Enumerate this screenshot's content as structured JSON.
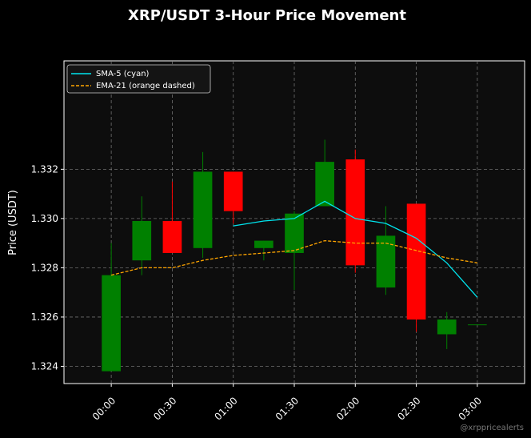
{
  "chart_data": {
    "type": "candlestick",
    "title": "XRP/USDT 3-Hour Price Movement",
    "ylabel": "Price (USDT)",
    "xlabel": "",
    "ylim": [
      1.3233,
      1.3364
    ],
    "y_ticks": [
      "1.324",
      "1.326",
      "1.328",
      "1.330",
      "1.332"
    ],
    "y_tick_values": [
      1.324,
      1.326,
      1.328,
      1.33,
      1.332
    ],
    "x_tick_labels": [
      "00:00",
      "00:30",
      "01:00",
      "01:30",
      "02:00",
      "02:30",
      "03:00"
    ],
    "x_tick_index": [
      0,
      2,
      4,
      6,
      8,
      10,
      12
    ],
    "x_range_index": [
      -1.55,
      13.55
    ],
    "grid": true,
    "legend_position": "top-left",
    "legend": [
      {
        "label": "SMA-5 (cyan)",
        "color": "#00e5ee",
        "style": "solid"
      },
      {
        "label": "EMA-21 (orange dashed)",
        "color": "#ffa500",
        "style": "dashed"
      }
    ],
    "times": [
      "00:00",
      "00:15",
      "00:30",
      "00:45",
      "01:00",
      "01:15",
      "01:30",
      "01:45",
      "02:00",
      "02:15",
      "02:30",
      "02:45",
      "03:00"
    ],
    "candles": [
      {
        "open": 1.3238,
        "high": 1.329,
        "low": 1.3238,
        "close": 1.3277
      },
      {
        "open": 1.3283,
        "high": 1.3309,
        "low": 1.3277,
        "close": 1.3299
      },
      {
        "open": 1.3299,
        "high": 1.3315,
        "low": 1.3286,
        "close": 1.3286
      },
      {
        "open": 1.3288,
        "high": 1.3327,
        "low": 1.3284,
        "close": 1.3319
      },
      {
        "open": 1.3319,
        "high": 1.3319,
        "low": 1.3298,
        "close": 1.3303
      },
      {
        "open": 1.3288,
        "high": 1.3291,
        "low": 1.3283,
        "close": 1.3291
      },
      {
        "open": 1.3286,
        "high": 1.3303,
        "low": 1.3271,
        "close": 1.3302
      },
      {
        "open": 1.3305,
        "high": 1.3332,
        "low": 1.3305,
        "close": 1.3323
      },
      {
        "open": 1.3324,
        "high": 1.3328,
        "low": 1.3278,
        "close": 1.3281
      },
      {
        "open": 1.3272,
        "high": 1.3305,
        "low": 1.3269,
        "close": 1.3293
      },
      {
        "open": 1.3306,
        "high": 1.3306,
        "low": 1.3254,
        "close": 1.3259
      },
      {
        "open": 1.3253,
        "high": 1.3262,
        "low": 1.3247,
        "close": 1.3259
      },
      {
        "open": 1.3257,
        "high": 1.3257,
        "low": 1.3257,
        "close": 1.3257
      }
    ],
    "series": [
      {
        "name": "SMA-5 (cyan)",
        "color": "#00e5ee",
        "start_index": 4,
        "values": [
          1.3297,
          1.3299,
          1.33,
          1.3307,
          1.33,
          1.3298,
          1.3292,
          1.3282,
          1.3268
        ]
      },
      {
        "name": "EMA-21 (orange dashed)",
        "color": "#ffa500",
        "start_index": 0,
        "values": [
          1.3277,
          1.328,
          1.328,
          1.3283,
          1.3285,
          1.3286,
          1.3287,
          1.3291,
          1.329,
          1.329,
          1.3287,
          1.3284,
          1.3282
        ]
      }
    ],
    "colors": {
      "up": "#008000",
      "down": "#ff0000",
      "plot_bg": "#0d0d0d",
      "page_bg": "#000000",
      "grid": "#888888"
    }
  },
  "watermark": "@xrppricealerts"
}
